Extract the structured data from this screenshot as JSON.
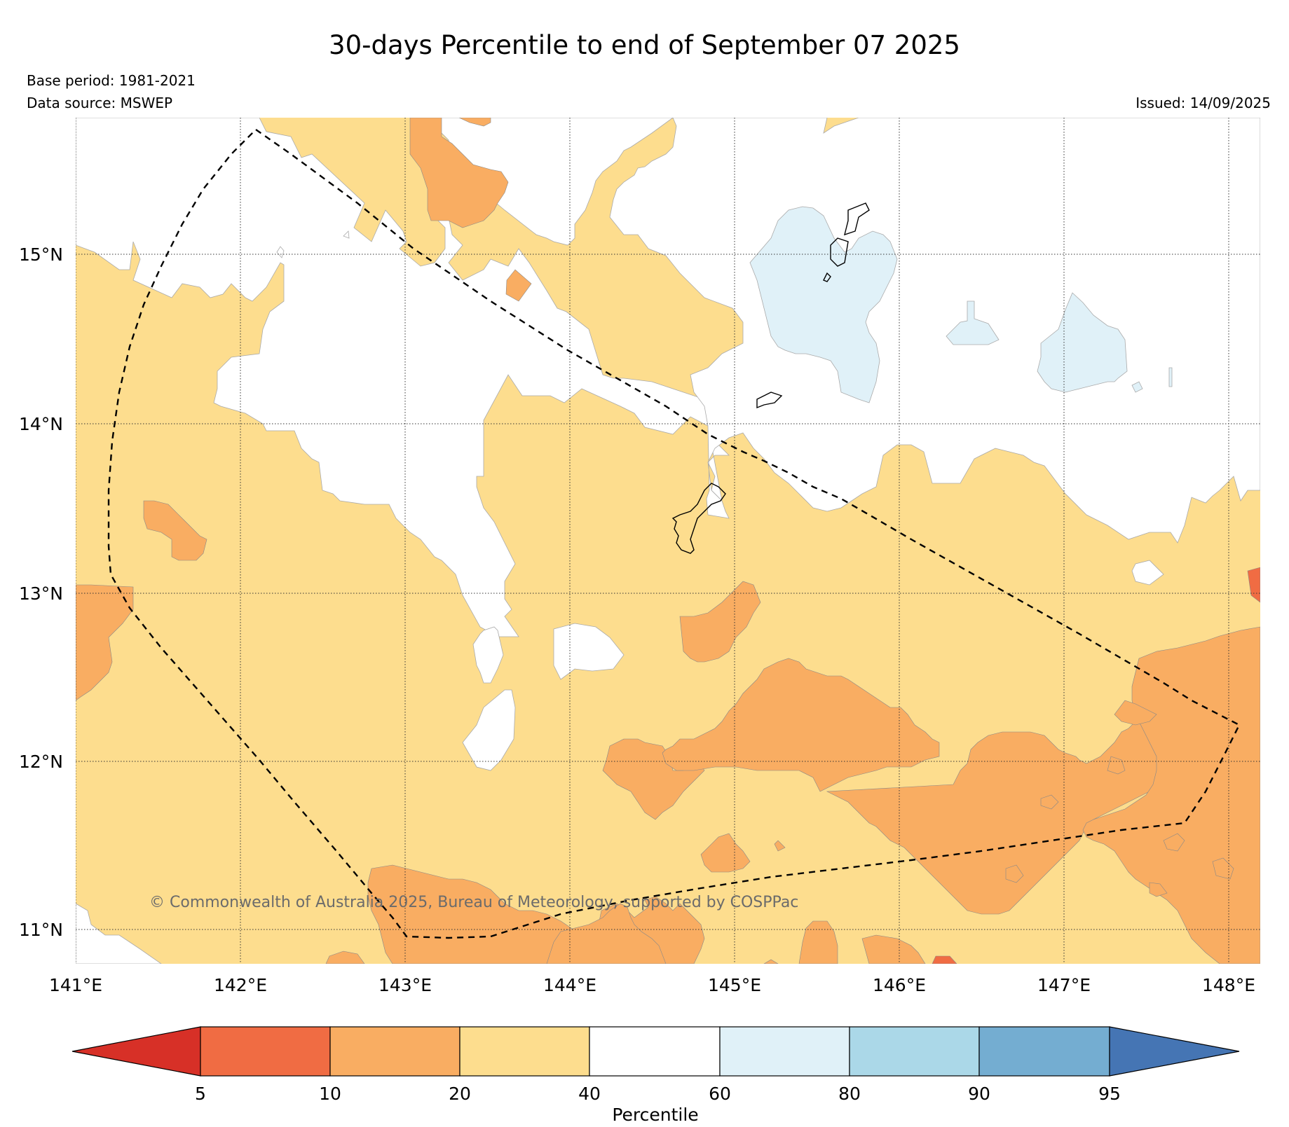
{
  "header": {
    "title": "30-days Percentile to end of September 07 2025",
    "base_period": "Base period: 1981-2021",
    "data_source": "Data source: MSWEP",
    "issued": "Issued: 14/09/2025"
  },
  "map": {
    "lat_labels": [
      "15°N",
      "14°N",
      "13°N",
      "12°N",
      "11°N"
    ],
    "lon_labels": [
      "141°E",
      "142°E",
      "143°E",
      "144°E",
      "145°E",
      "146°E",
      "147°E",
      "148°E"
    ],
    "copyright": "© Commonwealth of Australia 2025, Bureau of Meteorology, supported by COSPPac",
    "colors": {
      "p5_10": "#f06c43",
      "p10_20": "#f9ad62",
      "p20_40": "#fddd8e",
      "p40_60": "#ffffff",
      "p60_80": "#e0f1f8",
      "p80_90": "#abd8e8",
      "p90_95": "#74add1",
      "above95": "#4575b4",
      "below5": "#d73027"
    }
  },
  "colorbar": {
    "ticks": [
      "5",
      "10",
      "20",
      "40",
      "60",
      "80",
      "90",
      "95"
    ],
    "label": "Percentile"
  }
}
